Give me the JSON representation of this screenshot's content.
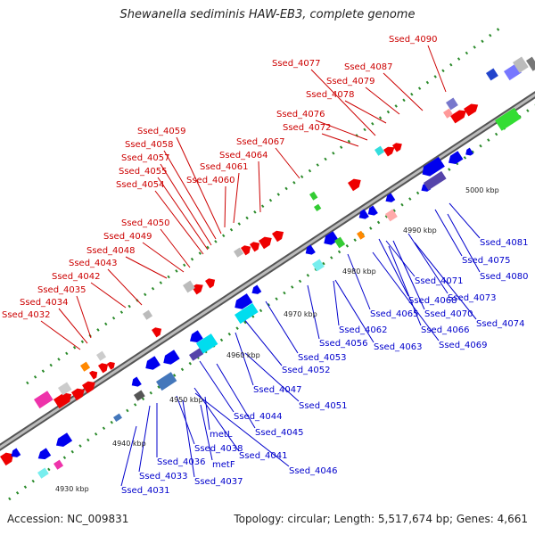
{
  "title": "Shewanella sediminis HAW-EB3, complete genome",
  "footer": {
    "accession": "Accession: NC_009831",
    "topology": "Topology: circular; Length: 5,517,674 bp; Genes: 4,661"
  },
  "kbp_labels": [
    "4930 kbp",
    "4940 kbp",
    "4950 kbp",
    "4960 kbp",
    "4970 kbp",
    "4980 kbp",
    "4990 kbp",
    "5000 kbp"
  ],
  "forward_genes": [
    "Ssed_4090",
    "Ssed_4077",
    "Ssed_4087",
    "Ssed_4079",
    "Ssed_4078",
    "Ssed_4076",
    "Ssed_4072",
    "Ssed_4067",
    "Ssed_4064",
    "Ssed_4061",
    "Ssed_4060",
    "Ssed_4059",
    "Ssed_4058",
    "Ssed_4057",
    "Ssed_4055",
    "Ssed_4054",
    "Ssed_4050",
    "Ssed_4049",
    "Ssed_4048",
    "Ssed_4043",
    "Ssed_4042",
    "Ssed_4035",
    "Ssed_4034",
    "Ssed_4032"
  ],
  "reverse_genes": [
    "Ssed_4081",
    "Ssed_4075",
    "Ssed_4080",
    "Ssed_4071",
    "Ssed_4073",
    "Ssed_4068",
    "Ssed_4074",
    "Ssed_4070",
    "Ssed_4065",
    "Ssed_4066",
    "Ssed_4069",
    "Ssed_4062",
    "Ssed_4063",
    "Ssed_4056",
    "Ssed_4053",
    "Ssed_4052",
    "Ssed_4047",
    "Ssed_4051",
    "Ssed_4044",
    "Ssed_4045",
    "metL",
    "Ssed_4038",
    "Ssed_4041",
    "metF",
    "Ssed_4036",
    "Ssed_4046",
    "Ssed_4033",
    "Ssed_4037",
    "Ssed_4031"
  ],
  "colors": {
    "forward": "#ee0000",
    "reverse": "#0000ee",
    "label_forward": "#cc0000",
    "label_reverse": "#0000cc",
    "backbone": "#7f7f7f"
  }
}
